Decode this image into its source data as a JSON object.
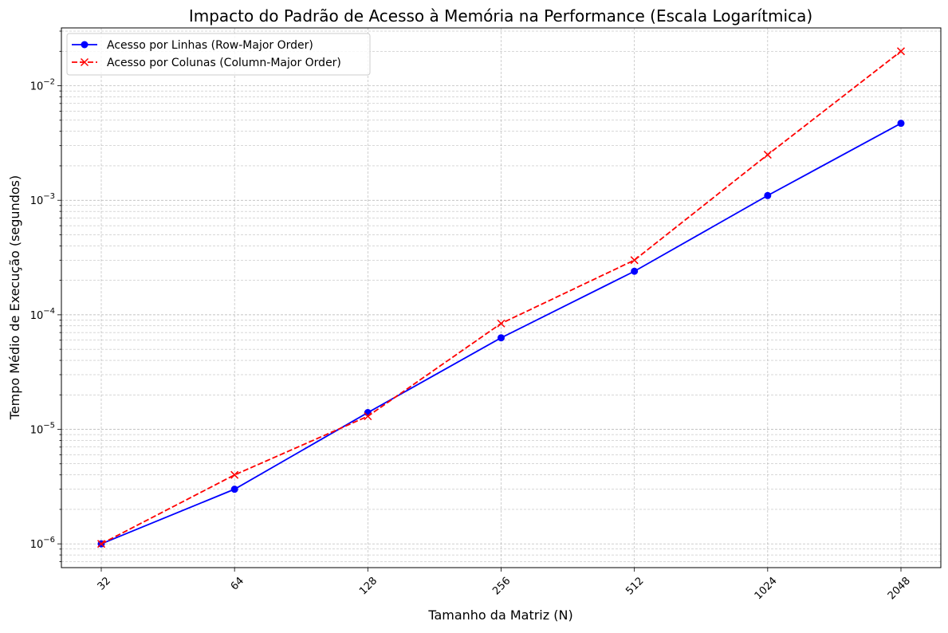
{
  "chart_data": {
    "type": "line",
    "title": "Impacto do Padrão de Acesso à Memória na Performance (Escala Logarítmica)",
    "xlabel": "Tamanho da Matriz (N)",
    "ylabel": "Tempo Médio de Execução (segundos)",
    "categories": [
      "32",
      "64",
      "128",
      "256",
      "512",
      "1024",
      "2048"
    ],
    "x_scale": "log2",
    "y_scale": "log",
    "ylim": [
      6.2e-07,
      0.032
    ],
    "y_ticks": [
      {
        "value": 1e-06,
        "base": "10",
        "exp": "−6"
      },
      {
        "value": 1e-05,
        "base": "10",
        "exp": "−5"
      },
      {
        "value": 0.0001,
        "base": "10",
        "exp": "−4"
      },
      {
        "value": 0.001,
        "base": "10",
        "exp": "−3"
      },
      {
        "value": 0.01,
        "base": "10",
        "exp": "−2"
      }
    ],
    "grid": true,
    "legend_position": "top-left",
    "series": [
      {
        "name": "Acesso por Linhas (Row-Major Order)",
        "values": [
          1e-06,
          3e-06,
          1.4e-05,
          6.3e-05,
          0.00024,
          0.0011,
          0.0047
        ],
        "color": "#0000ff",
        "line_style": "solid",
        "marker": "circle"
      },
      {
        "name": "Acesso por Colunas (Column-Major Order)",
        "values": [
          1e-06,
          4e-06,
          1.3e-05,
          8.4e-05,
          0.0003,
          0.0025,
          0.02
        ],
        "color": "#ff0000",
        "line_style": "dashed",
        "marker": "x"
      }
    ]
  }
}
